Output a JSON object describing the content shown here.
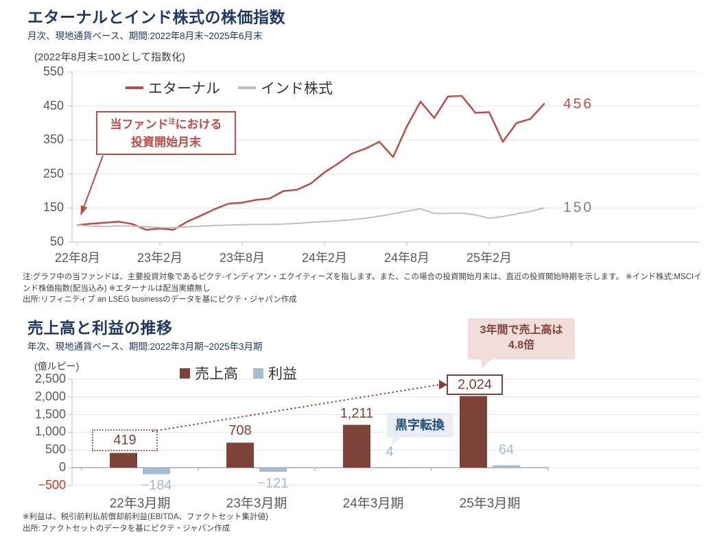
{
  "colors": {
    "title_navy": "#1F3864",
    "eternal_red": "#BE4B48",
    "india_gray": "#BFBFBF",
    "gray_end_label": "#7F7F7F",
    "revenue_brown": "#7D4238",
    "profit_blue": "#A6BAD2",
    "negative_tick_red": "#E0301E",
    "tick_gray": "#595959",
    "callout_pink_bg": "#F1DDD9",
    "bubble_blue_bg": "#E9EDF4",
    "bubble_navy_text": "#1F4E79"
  },
  "top_chart": {
    "title": "エターナルとインド株式の株価指数",
    "subtitle": "月次、現地通貨ベース、期間:2022年8月末~2025年6月末",
    "axis_note": "(2022年8月末=100として指数化)",
    "legend": [
      {
        "label": "エターナル",
        "color": "#BE4B48"
      },
      {
        "label": "インド株式",
        "color": "#BFBFBF"
      }
    ],
    "annotation": {
      "line1_pre": "当ファンド",
      "sup": "注",
      "line1_post": "における",
      "line2": "投資開始月末"
    },
    "end_values": [
      {
        "text": "456",
        "color": "#BE4B48"
      },
      {
        "text": "150",
        "color": "#7F7F7F"
      }
    ],
    "notes": [
      "注:グラフ中の当ファンドは、主要投資対象であるピクテ-インディアン・エクイティーズを指します。また、この場合の投資開始月末は、直近の投資開始時期を示します。 ※インド株式:MSCIインド株価指数(配当込み) ※エターナルは配当実績無し",
      "出所:リフィニティブ an LSEG businessのデータを基にピクテ・ジャパン作成"
    ]
  },
  "bottom_chart": {
    "title": "売上高と利益の推移",
    "subtitle": "年次、現地通貨ベース、期間:2022年3月期~2025年3月期",
    "axis_unit": "(億ルピー)",
    "legend": [
      {
        "label": "売上高",
        "color": "#7D4238"
      },
      {
        "label": "利益",
        "color": "#A6BAD2"
      }
    ],
    "callout": {
      "line1": "3年間で売上高は",
      "line2": "4.8倍"
    },
    "black_ink_label": "黒字転換",
    "notes": [
      "※利益は、税引前利払前償却前利益(EBITDA、ファクトセット集計値)",
      "出所:ファクトセットのデータを基にピクテ・ジャパン作成"
    ]
  },
  "chart_data": [
    {
      "type": "line",
      "title": "エターナルとインド株式の株価指数",
      "x_start": "2022-08",
      "x_end": "2025-06",
      "x_frequency": "monthly",
      "x_tick_labels": [
        "22年8月",
        "23年2月",
        "23年8月",
        "24年2月",
        "24年8月",
        "25年2月"
      ],
      "x_tick_indices": [
        0,
        6,
        12,
        18,
        24,
        30
      ],
      "y_ticks": [
        550,
        450,
        350,
        250,
        150,
        50
      ],
      "ylim": [
        50,
        550
      ],
      "grid": true,
      "legend_position": "top",
      "series": [
        {
          "name": "エターナル",
          "color": "#BE4B48",
          "end_label": "456",
          "values": [
            100,
            104,
            107,
            110,
            103,
            86,
            90,
            86,
            110,
            128,
            147,
            163,
            166,
            174,
            178,
            200,
            204,
            222,
            255,
            281,
            310,
            325,
            345,
            300,
            390,
            463,
            415,
            478,
            480,
            430,
            432,
            345,
            400,
            412,
            456
          ]
        },
        {
          "name": "インド株式",
          "color": "#BFBFBF",
          "end_label": "150",
          "values": [
            100,
            97,
            96,
            98,
            97,
            95,
            93,
            92,
            95,
            97,
            99,
            100,
            101,
            102,
            102,
            103,
            105,
            108,
            110,
            113,
            116,
            120,
            126,
            133,
            141,
            148,
            134,
            134,
            135,
            130,
            120,
            125,
            133,
            140,
            150
          ]
        }
      ]
    },
    {
      "type": "bar",
      "title": "売上高と利益の推移",
      "categories": [
        "22年3月期",
        "23年3月期",
        "24年3月期",
        "25年3月期"
      ],
      "y_ticks": [
        2500,
        2000,
        1500,
        1000,
        500,
        0,
        -500
      ],
      "y_tick_labels": [
        "2,500",
        "2,000",
        "1,500",
        "1,000",
        "500",
        "0",
        "−500"
      ],
      "ylim": [
        -500,
        2500
      ],
      "grid": true,
      "legend_position": "top",
      "series": [
        {
          "name": "売上高",
          "color": "#7D4238",
          "values": [
            419,
            708,
            1211,
            2024
          ],
          "labels": [
            "419",
            "708",
            "1,211",
            "2,024"
          ]
        },
        {
          "name": "利益",
          "color": "#A6BAD2",
          "values": [
            -184,
            -121,
            4,
            64
          ],
          "labels": [
            "−184",
            "−121",
            "4",
            "64"
          ]
        }
      ]
    }
  ]
}
